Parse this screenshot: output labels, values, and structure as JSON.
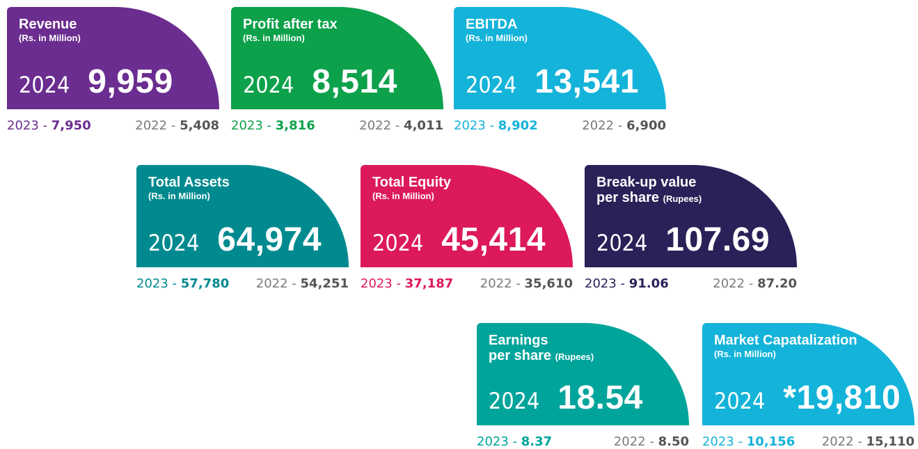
{
  "separator": "-",
  "cards": [
    {
      "title": [
        "Revenue"
      ],
      "unit": "(Rs. in Million)",
      "unit_inline": false,
      "year": "2024",
      "value": "9,959",
      "color": "#6b2d90",
      "previous": [
        {
          "year": "2023",
          "value": "7,950"
        },
        {
          "year": "2022",
          "value": "5,408"
        }
      ]
    },
    {
      "title": [
        "Profit after tax"
      ],
      "unit": "(Rs. in Million)",
      "unit_inline": false,
      "year": "2024",
      "value": "8,514",
      "color": "#0ca14a",
      "previous": [
        {
          "year": "2023",
          "value": "3,816"
        },
        {
          "year": "2022",
          "value": "4,011"
        }
      ]
    },
    {
      "title": [
        "EBITDA"
      ],
      "unit": "(Rs. in Million)",
      "unit_inline": false,
      "year": "2024",
      "value": "13,541",
      "color": "#14b3d9",
      "previous": [
        {
          "year": "2023",
          "value": "8,902"
        },
        {
          "year": "2022",
          "value": "6,900"
        }
      ]
    },
    {
      "title": [
        "Total Assets"
      ],
      "unit": "(Rs. in Million)",
      "unit_inline": false,
      "year": "2024",
      "value": "64,974",
      "color": "#008a8f",
      "previous": [
        {
          "year": "2023",
          "value": "57,780"
        },
        {
          "year": "2022",
          "value": "54,251"
        }
      ]
    },
    {
      "title": [
        "Total Equity"
      ],
      "unit": "(Rs. in Million)",
      "unit_inline": false,
      "year": "2024",
      "value": "45,414",
      "color": "#dc1a5b",
      "previous": [
        {
          "year": "2023",
          "value": "37,187"
        },
        {
          "year": "2022",
          "value": "35,610"
        }
      ]
    },
    {
      "title": [
        "Break-up value",
        "per share"
      ],
      "unit": "(Rupees)",
      "unit_inline": true,
      "year": "2024",
      "value": "107.69",
      "color": "#2a2158",
      "previous": [
        {
          "year": "2023",
          "value": "91.06"
        },
        {
          "year": "2022",
          "value": "87.20"
        }
      ]
    },
    {
      "title": [
        "Earnings",
        "per share"
      ],
      "unit": "(Rupees)",
      "unit_inline": true,
      "year": "2024",
      "value": "18.54",
      "color": "#00a49b",
      "previous": [
        {
          "year": "2023",
          "value": "8.37"
        },
        {
          "year": "2022",
          "value": "8.50"
        }
      ]
    },
    {
      "title": [
        "Market Capatalization"
      ],
      "unit": "(Rs. in Million)",
      "unit_inline": false,
      "year": "2024",
      "value": "*19,810",
      "color": "#14b3d9",
      "previous": [
        {
          "year": "2023",
          "value": "10,156"
        },
        {
          "year": "2022",
          "value": "15,110"
        }
      ]
    }
  ]
}
